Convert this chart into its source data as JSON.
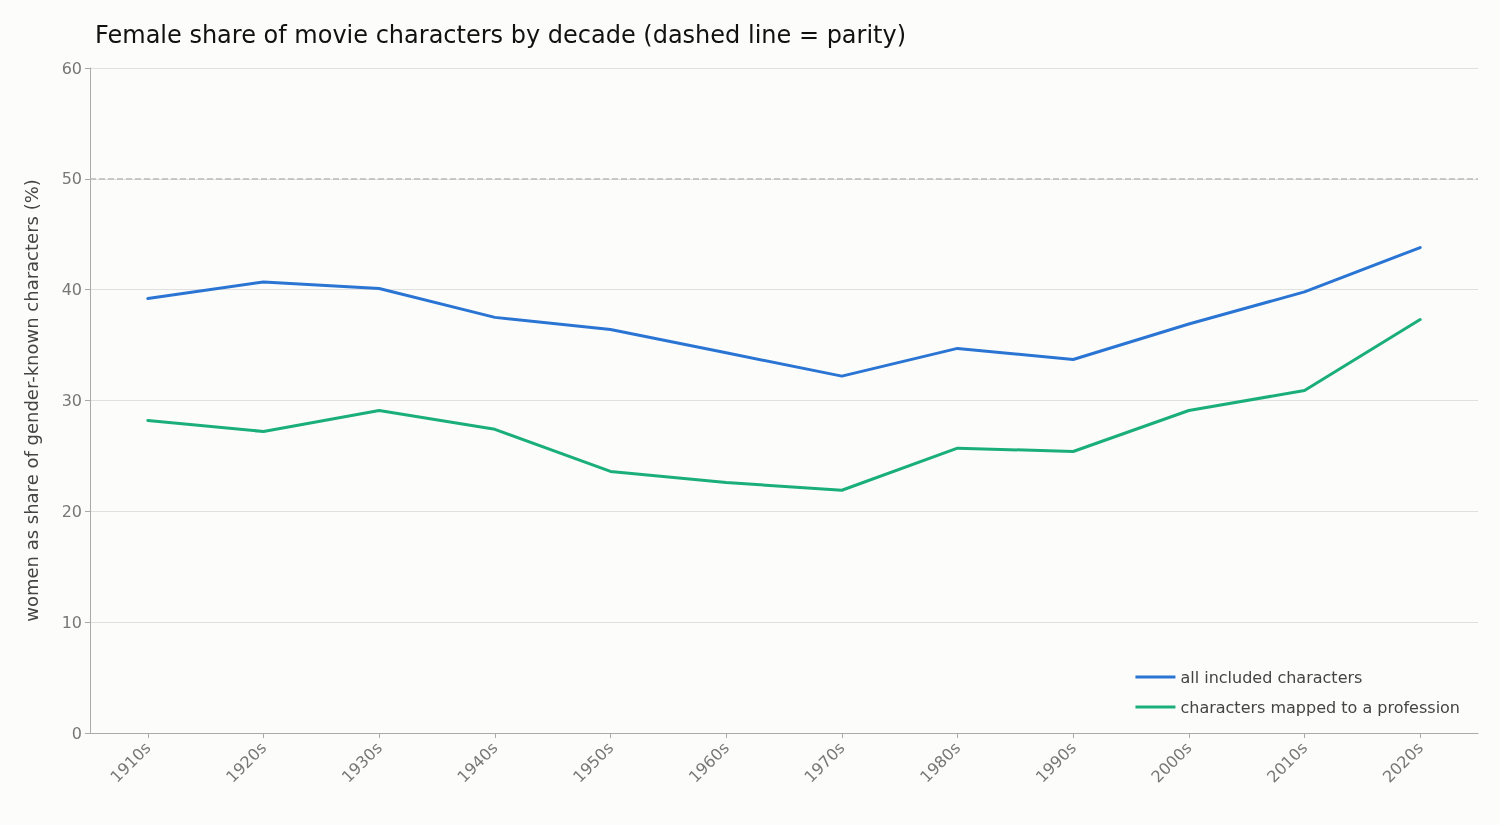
{
  "chart_data": {
    "type": "line",
    "title": "Female share of movie characters by decade (dashed line = parity)",
    "ylabel": "women as share of gender-known characters (%)",
    "categories": [
      "1910s",
      "1920s",
      "1930s",
      "1940s",
      "1950s",
      "1960s",
      "1970s",
      "1980s",
      "1990s",
      "2000s",
      "2010s",
      "2020s"
    ],
    "series": [
      {
        "name": "all included characters",
        "color": "#2a75d3",
        "values": [
          39.2,
          40.7,
          40.1,
          37.5,
          36.4,
          34.3,
          32.2,
          34.7,
          33.7,
          36.9,
          39.8,
          43.8
        ]
      },
      {
        "name": "characters mapped to a profession",
        "color": "#1aaf7a",
        "values": [
          28.2,
          27.2,
          29.1,
          27.4,
          23.6,
          22.6,
          21.9,
          25.7,
          25.4,
          29.1,
          30.9,
          37.3
        ]
      }
    ],
    "ylim": [
      0,
      60
    ],
    "yticks": [
      0,
      10,
      20,
      30,
      40,
      50,
      60
    ],
    "grid": "y",
    "legend": "bottom right",
    "marker": "none",
    "line_style": "solid",
    "ref_lines": [
      {
        "axis": "y",
        "value": 50,
        "color": "#bbbbb5",
        "line_style": "dashed"
      }
    ]
  }
}
